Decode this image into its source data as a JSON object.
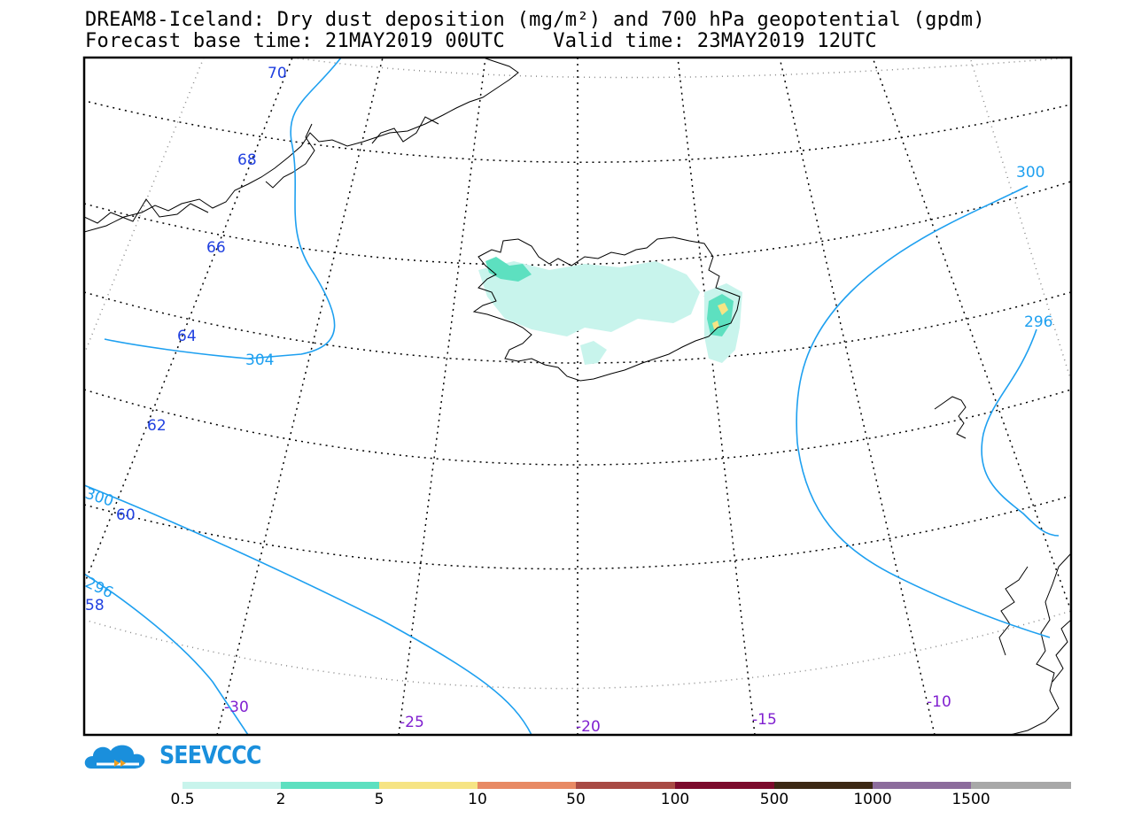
{
  "title": {
    "line1": "DREAM8-Iceland: Dry dust deposition (mg/m²) and 700 hPa geopotential (gpdm)",
    "line2": "Forecast base time: 21MAY2019 00UTC    Valid time: 23MAY2019 12UTC"
  },
  "latitude_labels": [
    "70",
    "68",
    "66",
    "64",
    "62",
    "60",
    "58"
  ],
  "longitude_labels": [
    "-30",
    "-25",
    "-20",
    "-15",
    "-10"
  ],
  "contour_labels": [
    "304",
    "300",
    "296",
    "300",
    "296"
  ],
  "logo": {
    "name": "SEEVCCC"
  },
  "colorbar": {
    "ticks": [
      "0.5",
      "2",
      "5",
      "10",
      "50",
      "100",
      "500",
      "1000",
      "1500"
    ],
    "colors": [
      "#c8f4ec",
      "#5de0c0",
      "#f6e484",
      "#e88a64",
      "#a84a44",
      "#7c0a2c",
      "#3c2814",
      "#8c6c9c",
      "#a8a8a8"
    ]
  },
  "colors": {
    "contour": "#1ea0f0",
    "lat_label": "#2040e0",
    "lon_label": "#8020d0"
  }
}
